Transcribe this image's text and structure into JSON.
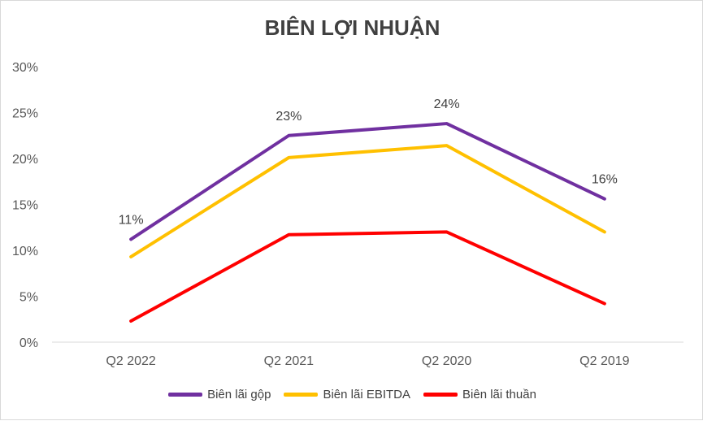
{
  "chart_data": {
    "type": "line",
    "title": "BIÊN LỢI NHUẬN",
    "xlabel": "",
    "ylabel": "",
    "categories": [
      "Q2 2022",
      "Q2 2021",
      "Q2 2020",
      "Q2 2019"
    ],
    "ylim": [
      0,
      30
    ],
    "yticks": [
      "0%",
      "5%",
      "10%",
      "15%",
      "20%",
      "25%",
      "30%"
    ],
    "ytick_values": [
      0,
      5,
      10,
      15,
      20,
      25,
      30
    ],
    "grid": false,
    "legend_position": "bottom",
    "series": [
      {
        "name": "Biên lãi gộp",
        "color": "#7030a0",
        "values": [
          11.2,
          22.5,
          23.8,
          15.6
        ],
        "data_labels": [
          "11%",
          "23%",
          "24%",
          "16%"
        ]
      },
      {
        "name": "Biên lãi EBITDA",
        "color": "#ffc000",
        "values": [
          9.3,
          20.1,
          21.4,
          12.0
        ]
      },
      {
        "name": "Biên lãi thuần",
        "color": "#ff0000",
        "values": [
          2.3,
          11.7,
          12.0,
          4.2
        ]
      }
    ]
  }
}
